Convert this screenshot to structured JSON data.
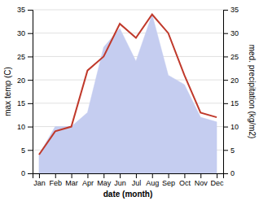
{
  "chart_data": {
    "type": "line",
    "categories": [
      "Jan",
      "Feb",
      "Mar",
      "Apr",
      "May",
      "Jun",
      "Jul",
      "Aug",
      "Sep",
      "Oct",
      "Nov",
      "Dec"
    ],
    "series": [
      {
        "type": "area",
        "color": "#c5cdf0",
        "axis": "y2",
        "values": [
          4,
          10,
          10,
          13,
          27,
          31,
          24,
          34,
          21,
          19,
          12,
          11
        ]
      },
      {
        "type": "line",
        "color": "#c0392b",
        "values": [
          4,
          9,
          10,
          22,
          25,
          32,
          29,
          34,
          30,
          21,
          13,
          12
        ]
      }
    ],
    "xlabel": "date (month)",
    "ylabel": "max temp (C)",
    "y2label": "med. precipitation (kg/m2)",
    "ylim": [
      0,
      35
    ],
    "yticks": [
      0,
      5,
      10,
      15,
      20,
      25,
      30,
      35
    ],
    "y2lim": [
      0,
      35
    ],
    "y2ticks": [
      0,
      5,
      10,
      15,
      20,
      25,
      30,
      35
    ],
    "grid": true
  }
}
